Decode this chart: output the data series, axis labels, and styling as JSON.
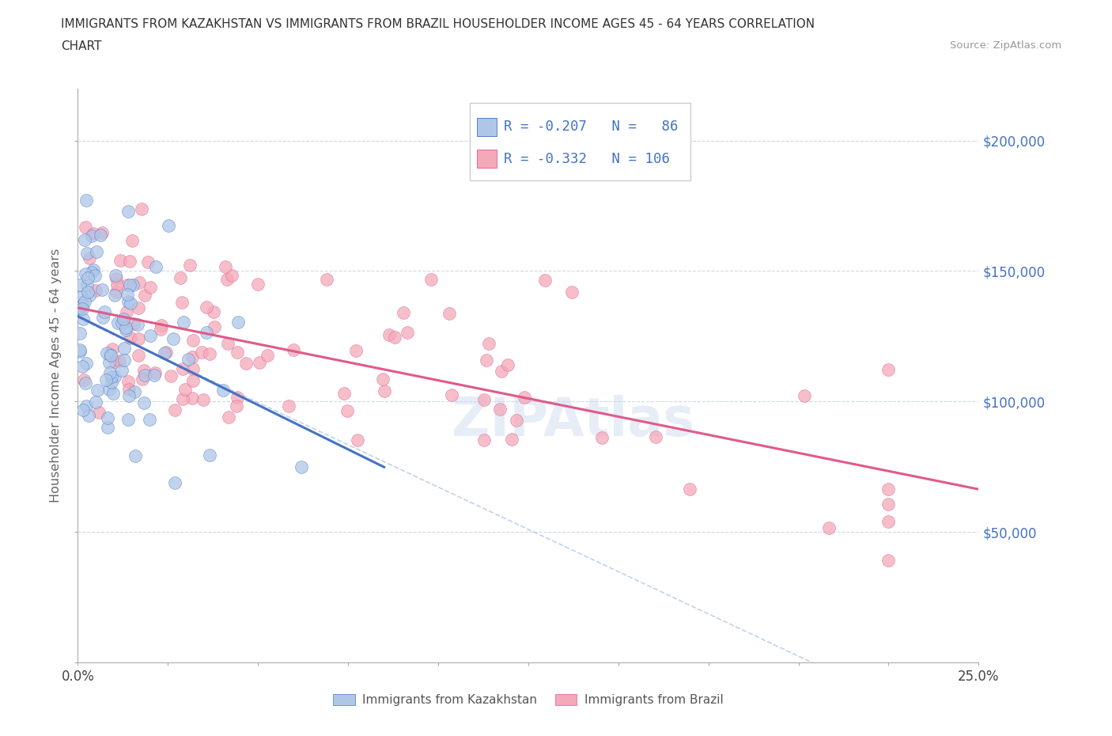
{
  "title_line1": "IMMIGRANTS FROM KAZAKHSTAN VS IMMIGRANTS FROM BRAZIL HOUSEHOLDER INCOME AGES 45 - 64 YEARS CORRELATION",
  "title_line2": "CHART",
  "source_text": "Source: ZipAtlas.com",
  "ylabel": "Householder Income Ages 45 - 64 years",
  "legend_label1": "Immigrants from Kazakhstan",
  "legend_label2": "Immigrants from Brazil",
  "color_kaz": "#aec6e8",
  "color_bra": "#f4a8b8",
  "color_kaz_line": "#4472c4",
  "color_bra_line": "#e05a8a",
  "color_tick": "#4472c4",
  "xlim": [
    0.0,
    0.25
  ],
  "ylim": [
    0,
    220000
  ],
  "yticks": [
    0,
    50000,
    100000,
    150000,
    200000
  ],
  "ytick_labels": [
    "",
    "$50,000",
    "$100,000",
    "$150,000",
    "$200,000"
  ],
  "xticks": [
    0.0,
    0.025,
    0.05,
    0.075,
    0.1,
    0.125,
    0.15,
    0.175,
    0.2,
    0.225,
    0.25
  ],
  "watermark_text": "ZIPAtlas",
  "kaz_seed": 101,
  "bra_seed": 202,
  "n_kaz": 86,
  "n_bra": 106
}
